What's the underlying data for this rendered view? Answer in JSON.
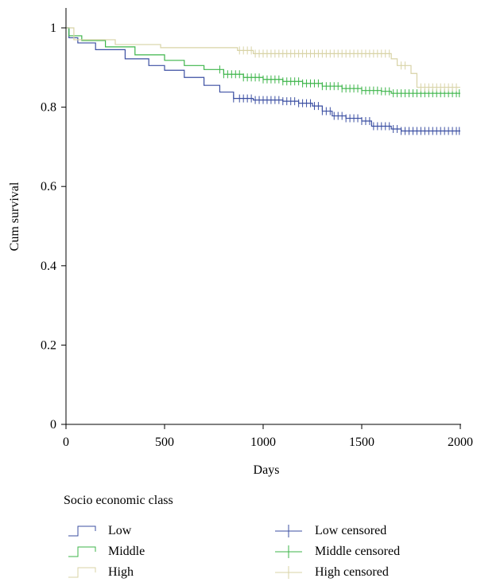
{
  "chart_data": {
    "type": "line",
    "subtype": "kaplan-meier",
    "xlabel": "Days",
    "ylabel": "Cum survival",
    "xlim": [
      0,
      2000
    ],
    "ylim": [
      0,
      1
    ],
    "xticks": [
      0,
      500,
      1000,
      1500,
      2000
    ],
    "yticks": [
      0,
      0.2,
      0.4,
      0.6,
      0.8,
      1
    ],
    "ytick_labels": [
      "0",
      "0.2",
      "0.4",
      "0.6",
      "0.8",
      "1"
    ],
    "grid": false,
    "legend_title": "Socio economic class",
    "legend_position": "bottom",
    "series": [
      {
        "name": "Low",
        "censored_name": "Low censored",
        "color": "#3b4fa2",
        "steps": [
          [
            0,
            1
          ],
          [
            15,
            0.975
          ],
          [
            60,
            0.962
          ],
          [
            150,
            0.945
          ],
          [
            300,
            0.922
          ],
          [
            420,
            0.905
          ],
          [
            500,
            0.893
          ],
          [
            600,
            0.875
          ],
          [
            700,
            0.855
          ],
          [
            780,
            0.838
          ],
          [
            850,
            0.822
          ],
          [
            950,
            0.818
          ],
          [
            1100,
            0.815
          ],
          [
            1180,
            0.81
          ],
          [
            1250,
            0.803
          ],
          [
            1300,
            0.79
          ],
          [
            1350,
            0.778
          ],
          [
            1420,
            0.772
          ],
          [
            1500,
            0.765
          ],
          [
            1550,
            0.752
          ],
          [
            1650,
            0.745
          ],
          [
            1700,
            0.74
          ],
          [
            2000,
            0.74
          ]
        ],
        "censored": [
          850,
          880,
          900,
          920,
          940,
          960,
          980,
          1000,
          1020,
          1040,
          1060,
          1080,
          1100,
          1120,
          1140,
          1160,
          1180,
          1200,
          1220,
          1240,
          1260,
          1280,
          1300,
          1320,
          1340,
          1360,
          1380,
          1400,
          1420,
          1440,
          1460,
          1480,
          1500,
          1520,
          1540,
          1560,
          1580,
          1600,
          1620,
          1640,
          1660,
          1680,
          1700,
          1720,
          1740,
          1760,
          1780,
          1800,
          1820,
          1840,
          1860,
          1880,
          1900,
          1920,
          1940,
          1960,
          1980,
          1995
        ]
      },
      {
        "name": "Middle",
        "censored_name": "Middle censored",
        "color": "#3db54a",
        "steps": [
          [
            0,
            1
          ],
          [
            15,
            0.98
          ],
          [
            80,
            0.968
          ],
          [
            200,
            0.952
          ],
          [
            350,
            0.932
          ],
          [
            500,
            0.918
          ],
          [
            600,
            0.905
          ],
          [
            700,
            0.895
          ],
          [
            800,
            0.883
          ],
          [
            900,
            0.875
          ],
          [
            1000,
            0.87
          ],
          [
            1100,
            0.865
          ],
          [
            1200,
            0.86
          ],
          [
            1300,
            0.853
          ],
          [
            1400,
            0.847
          ],
          [
            1500,
            0.842
          ],
          [
            1600,
            0.84
          ],
          [
            1650,
            0.835
          ],
          [
            2000,
            0.835
          ]
        ],
        "censored": [
          780,
          800,
          820,
          840,
          860,
          880,
          900,
          920,
          940,
          960,
          980,
          1000,
          1020,
          1040,
          1060,
          1080,
          1100,
          1120,
          1140,
          1160,
          1180,
          1200,
          1220,
          1240,
          1260,
          1280,
          1300,
          1320,
          1340,
          1360,
          1380,
          1400,
          1420,
          1440,
          1460,
          1480,
          1500,
          1520,
          1540,
          1560,
          1580,
          1600,
          1620,
          1640,
          1660,
          1680,
          1700,
          1720,
          1740,
          1760,
          1780,
          1800,
          1820,
          1840,
          1860,
          1880,
          1900,
          1920,
          1940,
          1960,
          1980,
          1995
        ]
      },
      {
        "name": "High",
        "censored_name": "High censored",
        "color": "#d8d3a6",
        "steps": [
          [
            0,
            1
          ],
          [
            40,
            0.97
          ],
          [
            250,
            0.958
          ],
          [
            480,
            0.95
          ],
          [
            870,
            0.943
          ],
          [
            950,
            0.935
          ],
          [
            1650,
            0.922
          ],
          [
            1680,
            0.905
          ],
          [
            1750,
            0.885
          ],
          [
            1780,
            0.85
          ],
          [
            2000,
            0.85
          ]
        ],
        "censored": [
          880,
          900,
          920,
          940,
          960,
          980,
          1000,
          1020,
          1040,
          1060,
          1080,
          1100,
          1120,
          1140,
          1160,
          1180,
          1200,
          1220,
          1240,
          1260,
          1280,
          1300,
          1320,
          1340,
          1360,
          1380,
          1400,
          1420,
          1440,
          1460,
          1480,
          1500,
          1520,
          1540,
          1560,
          1580,
          1600,
          1620,
          1640,
          1700,
          1720,
          1800,
          1820,
          1840,
          1860,
          1880,
          1900,
          1920,
          1940,
          1960,
          1980
        ]
      }
    ]
  }
}
